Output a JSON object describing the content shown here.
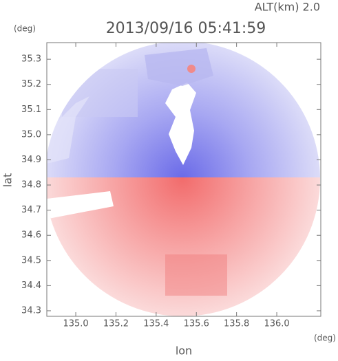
{
  "chart_data": {
    "type": "image",
    "title": "2013/09/16 05:41:59",
    "subtitle": "ALT(km) 2.0",
    "y_unit": "(deg)",
    "x_unit": "(deg)",
    "y_label": "lat",
    "x_label": "lon",
    "xlim": [
      134.856,
      136.219
    ],
    "ylim": [
      34.278,
      35.366
    ],
    "xticks": [
      {
        "value": 135.0,
        "label": "135.0"
      },
      135.2,
      135.4,
      135.6,
      135.8,
      {
        "value": 136.0,
        "label": "136.0"
      }
    ],
    "yticks": [
      35.3,
      35.2,
      35.1,
      {
        "value": 35.0,
        "label": "35.0"
      },
      34.9,
      34.8,
      34.7,
      34.6,
      34.5,
      34.4,
      34.3
    ]
  }
}
